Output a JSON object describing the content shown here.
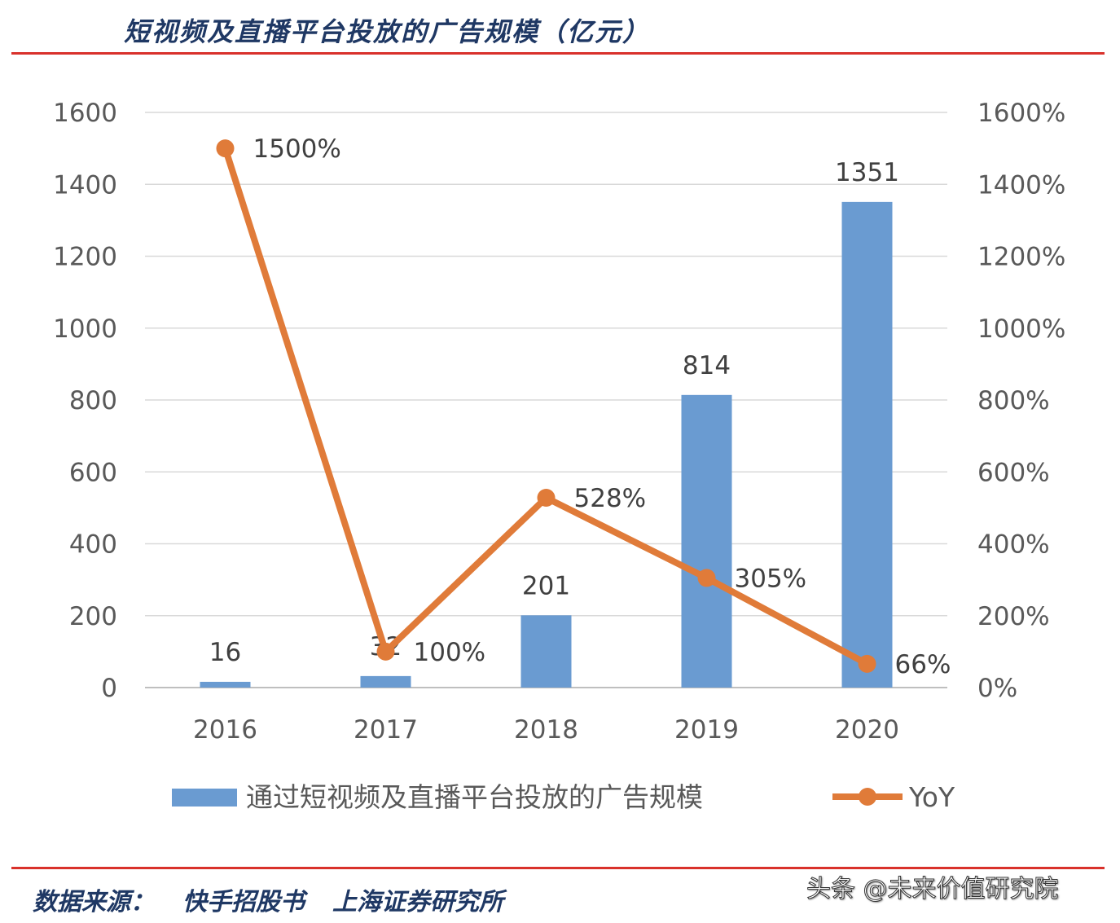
{
  "header": {
    "title": "短视频及直播平台投放的广告规模（亿元）"
  },
  "footer": {
    "source_label": "数据来源：",
    "source_1": "快手招股书",
    "source_2": "上海证券研究所",
    "watermark": "头条 @未来价值研究院"
  },
  "colors": {
    "bar": "#6a9bd1",
    "line": "#e07b39",
    "rule": "#d9312b",
    "title": "#1f3864"
  },
  "chart_data": {
    "type": "bar",
    "categories": [
      "2016",
      "2017",
      "2018",
      "2019",
      "2020"
    ],
    "series": [
      {
        "name": "通过短视频及直播平台投放的广告规模",
        "type": "bar",
        "axis": "left",
        "values": [
          16,
          32,
          201,
          814,
          1351
        ],
        "labels": [
          "16",
          "32",
          "201",
          "814",
          "1351"
        ]
      },
      {
        "name": "YoY",
        "type": "line",
        "axis": "right",
        "values": [
          1500,
          100,
          528,
          305,
          66
        ],
        "labels": [
          "1500%",
          "100%",
          "528%",
          "305%",
          "66%"
        ]
      }
    ],
    "y_left": {
      "ylim": [
        0,
        1600
      ],
      "ticks": [
        "0",
        "200",
        "400",
        "600",
        "800",
        "1000",
        "1200",
        "1400",
        "1600"
      ]
    },
    "y_right": {
      "ylim": [
        0,
        1600
      ],
      "ticks": [
        "0%",
        "200%",
        "400%",
        "600%",
        "800%",
        "1000%",
        "1200%",
        "1400%",
        "1600%"
      ]
    },
    "grid": true,
    "legend": "bottom"
  }
}
